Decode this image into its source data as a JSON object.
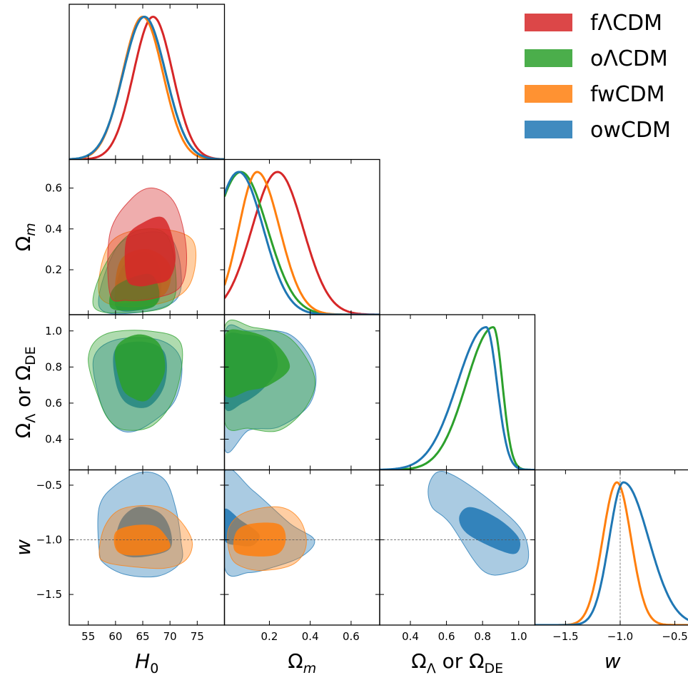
{
  "chart_data": {
    "type": "triangle-corner-plot",
    "parameters": [
      {
        "key": "H0",
        "label_base": "H",
        "label_sub": "0",
        "ticks": [
          55,
          60,
          65,
          70,
          75
        ],
        "range": [
          51.5,
          80
        ]
      },
      {
        "key": "Om",
        "label_base": "Ω",
        "label_sub": "m",
        "ticks": [
          0.2,
          0.4,
          0.6
        ],
        "range": [
          -0.02,
          0.74
        ]
      },
      {
        "key": "OL",
        "label_base": "Ω",
        "label_sub": "Λ",
        "label_mid": " or Ω",
        "label_sub2": "DE",
        "ticks": [
          0.4,
          0.6,
          0.8,
          1.0
        ],
        "range": [
          0.23,
          1.09
        ]
      },
      {
        "key": "w",
        "label_base": "w",
        "label_sub": "",
        "ticks": [
          -1.5,
          -1.0,
          -0.5
        ],
        "range": [
          -1.78,
          -0.36
        ]
      }
    ],
    "reference_lines": {
      "w": -1.0
    },
    "series": [
      {
        "name": "fΛCDM",
        "color": "#d62728",
        "marginals": {
          "H0": {
            "mean": 66.9,
            "sd": 3.6
          },
          "Om": {
            "mean": 0.24,
            "sd": 0.125
          }
        }
      },
      {
        "name": "oΛCDM",
        "color": "#2ca02c",
        "marginals": {
          "H0": {
            "mean": 65.3,
            "sd": 3.9
          },
          "Om": {
            "mean": 0.06,
            "sd": 0.13
          },
          "OL": {
            "mean": 0.86,
            "sd_lo": 0.15,
            "sd_hi": 0.05
          }
        }
      },
      {
        "name": "fwCDM",
        "color": "#ff7f0e",
        "marginals": {
          "H0": {
            "mean": 65.0,
            "sd": 3.7
          },
          "Om": {
            "mean": 0.14,
            "sd_lo": 0.09,
            "sd_hi": 0.11
          },
          "w": {
            "mean": -1.03,
            "sd": 0.13
          }
        }
      },
      {
        "name": "owCDM",
        "color": "#1f77b4",
        "marginals": {
          "H0": {
            "mean": 65.3,
            "sd": 3.9
          },
          "Om": {
            "mean": 0.05,
            "sd": 0.12
          },
          "OL": {
            "mean": 0.82,
            "sd_lo": 0.16,
            "sd_hi": 0.06
          },
          "w": {
            "mean": -0.97,
            "sd_lo": 0.13,
            "sd_hi": 0.23
          }
        }
      }
    ],
    "contours": {
      "H0-Om": [
        {
          "series": "owCDM",
          "outer": [
            [
              57,
              0.02
            ],
            [
              60,
              0.3
            ],
            [
              65,
              0.38
            ],
            [
              70,
              0.36
            ],
            [
              72,
              0.2
            ],
            [
              71,
              0.05
            ],
            [
              64,
              -0.01
            ]
          ],
          "inner": [
            [
              60,
              0.02
            ],
            [
              61,
              0.2
            ],
            [
              65,
              0.29
            ],
            [
              68,
              0.22
            ],
            [
              68,
              0.05
            ],
            [
              64,
              0.0
            ]
          ]
        },
        {
          "series": "fwCDM",
          "outer": [
            [
              57,
              0.08
            ],
            [
              59,
              0.33
            ],
            [
              66,
              0.4
            ],
            [
              74,
              0.35
            ],
            [
              74,
              0.15
            ],
            [
              70,
              0.05
            ],
            [
              62,
              0.02
            ]
          ],
          "inner": [
            [
              60,
              0.06
            ],
            [
              61,
              0.25
            ],
            [
              66,
              0.3
            ],
            [
              70,
              0.22
            ],
            [
              69,
              0.08
            ],
            [
              63,
              0.04
            ]
          ]
        },
        {
          "series": "oΛCDM",
          "outer": [
            [
              56,
              0.02
            ],
            [
              58,
              0.22
            ],
            [
              63,
              0.38
            ],
            [
              69,
              0.38
            ],
            [
              71,
              0.2
            ],
            [
              70,
              0.03
            ],
            [
              62,
              -0.01
            ]
          ],
          "inner": [
            [
              59,
              0.02
            ],
            [
              60,
              0.12
            ],
            [
              66,
              0.18
            ],
            [
              68,
              0.1
            ],
            [
              67,
              0.02
            ],
            [
              62,
              0.0
            ]
          ]
        },
        {
          "series": "fΛCDM",
          "outer": [
            [
              59,
              0.08
            ],
            [
              59,
              0.38
            ],
            [
              63,
              0.55
            ],
            [
              67,
              0.6
            ],
            [
              71,
              0.52
            ],
            [
              73,
              0.3
            ],
            [
              72,
              0.12
            ],
            [
              67,
              0.06
            ],
            [
              62,
              0.05
            ]
          ],
          "inner": [
            [
              62,
              0.16
            ],
            [
              62,
              0.35
            ],
            [
              65,
              0.43
            ],
            [
              69,
              0.45
            ],
            [
              71,
              0.28
            ],
            [
              70,
              0.16
            ],
            [
              67,
              0.13
            ],
            [
              64,
              0.12
            ]
          ]
        }
      ],
      "H0-OL": [
        {
          "series": "owCDM",
          "outer": [
            [
              57,
              0.63
            ],
            [
              56,
              0.85
            ],
            [
              60,
              0.95
            ],
            [
              68,
              0.95
            ],
            [
              72,
              0.84
            ],
            [
              71,
              0.62
            ],
            [
              66,
              0.48
            ],
            [
              62,
              0.44
            ],
            [
              59,
              0.5
            ]
          ],
          "inner": [
            [
              60,
              0.72
            ],
            [
              60,
              0.9
            ],
            [
              65,
              0.94
            ],
            [
              69,
              0.88
            ],
            [
              69,
              0.7
            ],
            [
              66,
              0.58
            ],
            [
              62,
              0.6
            ]
          ]
        },
        {
          "series": "oΛCDM",
          "outer": [
            [
              57,
              0.62
            ],
            [
              55,
              0.85
            ],
            [
              58,
              0.98
            ],
            [
              66,
              1.0
            ],
            [
              72,
              0.93
            ],
            [
              71,
              0.65
            ],
            [
              67,
              0.48
            ],
            [
              62,
              0.45
            ],
            [
              59,
              0.5
            ]
          ],
          "inner": [
            [
              61,
              0.7
            ],
            [
              60,
              0.9
            ],
            [
              64,
              0.98
            ],
            [
              68,
              0.93
            ],
            [
              69,
              0.77
            ],
            [
              66,
              0.62
            ],
            [
              63,
              0.63
            ]
          ]
        }
      ],
      "Om-OL": [
        {
          "series": "owCDM",
          "outer": [
            [
              -0.02,
              0.35
            ],
            [
              -0.02,
              0.98
            ],
            [
              0.1,
              1.0
            ],
            [
              0.3,
              0.98
            ],
            [
              0.42,
              0.8
            ],
            [
              0.4,
              0.6
            ],
            [
              0.25,
              0.47
            ],
            [
              0.1,
              0.45
            ]
          ],
          "inner": [
            [
              -0.02,
              0.58
            ],
            [
              -0.02,
              0.95
            ],
            [
              0.08,
              0.98
            ],
            [
              0.2,
              0.94
            ],
            [
              0.24,
              0.8
            ],
            [
              0.17,
              0.68
            ],
            [
              0.07,
              0.6
            ]
          ]
        },
        {
          "series": "oΛCDM",
          "outer": [
            [
              -0.02,
              0.5
            ],
            [
              -0.02,
              1.02
            ],
            [
              0.12,
              1.02
            ],
            [
              0.3,
              0.96
            ],
            [
              0.42,
              0.75
            ],
            [
              0.38,
              0.58
            ],
            [
              0.25,
              0.45
            ],
            [
              0.1,
              0.46
            ]
          ],
          "inner": [
            [
              -0.02,
              0.65
            ],
            [
              -0.02,
              0.97
            ],
            [
              0.08,
              1.0
            ],
            [
              0.22,
              0.94
            ],
            [
              0.3,
              0.8
            ],
            [
              0.2,
              0.7
            ],
            [
              0.1,
              0.67
            ]
          ]
        }
      ],
      "H0-w": [
        {
          "series": "owCDM",
          "outer": [
            [
              57,
              -1.1
            ],
            [
              57,
              -0.7
            ],
            [
              60,
              -0.5
            ],
            [
              65,
              -0.38
            ],
            [
              69,
              -0.45
            ],
            [
              71,
              -0.7
            ],
            [
              72,
              -1.0
            ],
            [
              72,
              -1.2
            ],
            [
              68,
              -1.33
            ],
            [
              62,
              -1.32
            ],
            [
              58,
              -1.22
            ]
          ],
          "inner": [
            [
              60,
              -1.05
            ],
            [
              61,
              -0.82
            ],
            [
              64,
              -0.7
            ],
            [
              68,
              -0.75
            ],
            [
              70,
              -0.9
            ],
            [
              70,
              -1.08
            ],
            [
              66,
              -1.15
            ],
            [
              62,
              -1.15
            ]
          ]
        },
        {
          "series": "fwCDM",
          "outer": [
            [
              57,
              -1.12
            ],
            [
              58,
              -0.88
            ],
            [
              61,
              -0.72
            ],
            [
              67,
              -0.69
            ],
            [
              71,
              -0.78
            ],
            [
              74,
              -1.0
            ],
            [
              73,
              -1.18
            ],
            [
              69,
              -1.26
            ],
            [
              62,
              -1.24
            ],
            [
              58,
              -1.2
            ]
          ],
          "inner": [
            [
              60,
              -1.08
            ],
            [
              60,
              -0.93
            ],
            [
              63,
              -0.87
            ],
            [
              67,
              -0.87
            ],
            [
              69,
              -0.95
            ],
            [
              70,
              -1.07
            ],
            [
              67,
              -1.13
            ],
            [
              62,
              -1.14
            ]
          ]
        }
      ],
      "Om-w": [
        {
          "series": "owCDM",
          "outer": [
            [
              -0.02,
              -1.25
            ],
            [
              -0.02,
              -0.38
            ],
            [
              0.12,
              -0.55
            ],
            [
              0.3,
              -0.85
            ],
            [
              0.42,
              -1.0
            ],
            [
              0.36,
              -1.15
            ],
            [
              0.22,
              -1.25
            ],
            [
              0.1,
              -1.3
            ]
          ],
          "inner": [
            [
              -0.02,
              -1.0
            ],
            [
              -0.02,
              -0.72
            ],
            [
              0.06,
              -0.82
            ],
            [
              0.15,
              -0.95
            ],
            [
              0.12,
              -1.05
            ],
            [
              0.05,
              -1.05
            ]
          ]
        },
        {
          "series": "fwCDM",
          "outer": [
            [
              0.01,
              -1.15
            ],
            [
              0.0,
              -0.9
            ],
            [
              0.08,
              -0.75
            ],
            [
              0.25,
              -0.7
            ],
            [
              0.35,
              -0.82
            ],
            [
              0.38,
              -1.05
            ],
            [
              0.32,
              -1.22
            ],
            [
              0.18,
              -1.28
            ],
            [
              0.07,
              -1.25
            ]
          ],
          "inner": [
            [
              0.03,
              -1.1
            ],
            [
              0.04,
              -0.92
            ],
            [
              0.12,
              -0.85
            ],
            [
              0.25,
              -0.86
            ],
            [
              0.28,
              -1.0
            ],
            [
              0.24,
              -1.13
            ],
            [
              0.12,
              -1.15
            ]
          ]
        }
      ],
      "OL-w": [
        {
          "series": "owCDM",
          "outer": [
            [
              0.5,
              -0.52
            ],
            [
              0.55,
              -0.38
            ],
            [
              0.65,
              -0.42
            ],
            [
              0.85,
              -0.65
            ],
            [
              1.02,
              -0.92
            ],
            [
              1.05,
              -1.2
            ],
            [
              0.95,
              -1.3
            ],
            [
              0.8,
              -1.28
            ],
            [
              0.62,
              -0.85
            ],
            [
              0.52,
              -0.7
            ]
          ],
          "inner": [
            [
              0.67,
              -0.8
            ],
            [
              0.73,
              -0.7
            ],
            [
              0.88,
              -0.8
            ],
            [
              1.0,
              -0.98
            ],
            [
              0.99,
              -1.12
            ],
            [
              0.9,
              -1.1
            ],
            [
              0.72,
              -0.95
            ]
          ]
        }
      ]
    },
    "legend": {
      "position": "top-right",
      "entries": [
        "fΛCDM",
        "oΛCDM",
        "fwCDM",
        "owCDM"
      ]
    }
  }
}
